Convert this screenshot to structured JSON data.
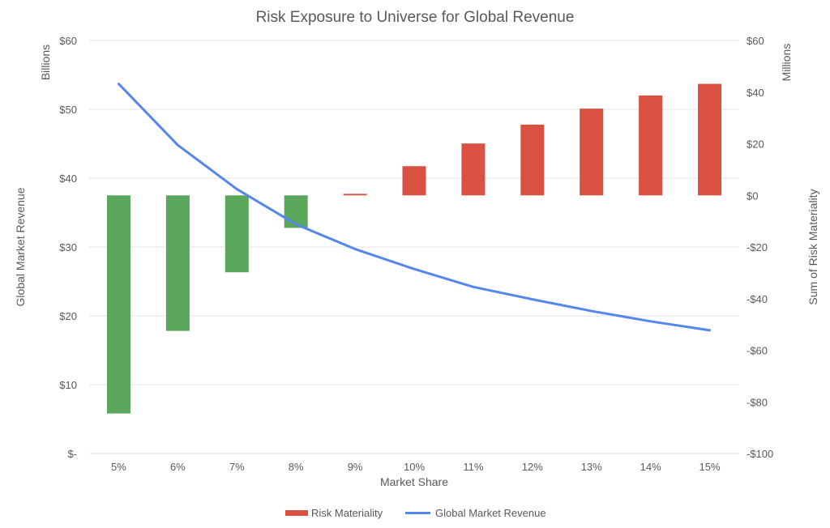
{
  "chart_data": {
    "type": "bar+line",
    "title": "Risk Exposure to Universe for Global Revenue",
    "xlabel": "Market Share",
    "ylabel_left": "Global Market Revenue",
    "ylabel_left_unit": "Billions",
    "ylabel_right": "Sum of Risk Materiality",
    "ylabel_right_unit": "Millions",
    "categories": [
      "5%",
      "6%",
      "7%",
      "8%",
      "9%",
      "10%",
      "11%",
      "12%",
      "13%",
      "14%",
      "15%"
    ],
    "left_axis": {
      "ylim": [
        0,
        60
      ],
      "ticks": [
        0,
        10,
        20,
        30,
        40,
        50,
        60
      ],
      "tick_labels": [
        "$-",
        "$10",
        "$20",
        "$30",
        "$40",
        "$50",
        "$60"
      ]
    },
    "right_axis": {
      "ylim": [
        -100,
        60
      ],
      "ticks": [
        -100,
        -80,
        -60,
        -40,
        -20,
        0,
        20,
        40,
        60
      ],
      "tick_labels": [
        "-$100",
        "-$80",
        "-$60",
        "-$40",
        "-$20",
        "$0",
        "$20",
        "$40",
        "$60"
      ]
    },
    "grid": true,
    "legend_position": "bottom",
    "series": [
      {
        "name": "Risk Materiality",
        "type": "bar",
        "axis": "right",
        "color": "#d85141",
        "negative_color": "#5aa65a",
        "values": [
          -84.5,
          -52.5,
          -29.8,
          -12.6,
          0.6,
          11.3,
          20.1,
          27.4,
          33.6,
          38.7,
          43.2
        ]
      },
      {
        "name": "Global Market Revenue",
        "type": "line",
        "axis": "left",
        "color": "#5586eb",
        "values": [
          53.7,
          44.8,
          38.4,
          33.3,
          29.7,
          26.8,
          24.2,
          22.4,
          20.7,
          19.2,
          17.9
        ]
      }
    ]
  }
}
